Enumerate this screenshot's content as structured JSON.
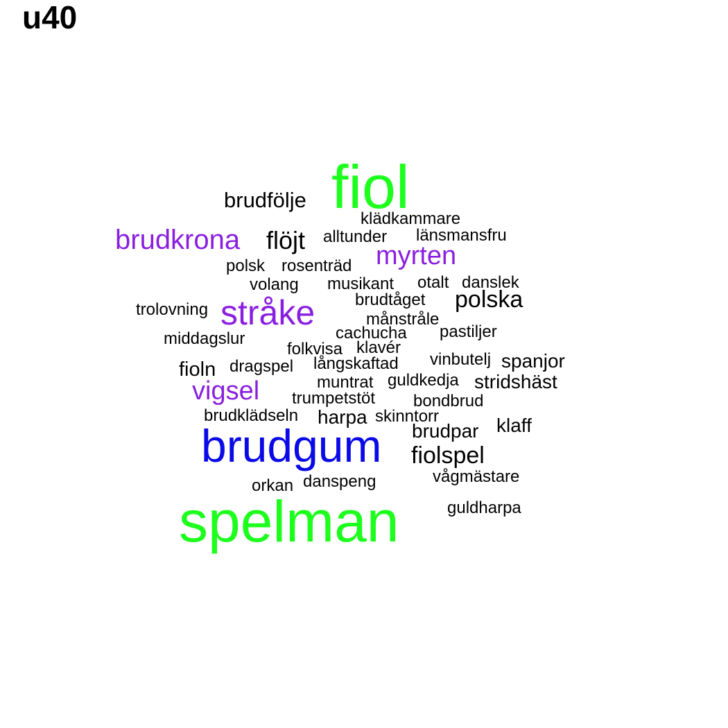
{
  "title": "u40",
  "colors": {
    "black": "#000000",
    "purple": "#8a1fe0",
    "green": "#1dff1d",
    "blue": "#0a0ae8"
  },
  "words": [
    {
      "text": "fiol",
      "color": "green"
    },
    {
      "text": "spelman",
      "color": "green"
    },
    {
      "text": "brudgum",
      "color": "blue"
    },
    {
      "text": "brudkrona",
      "color": "purple"
    },
    {
      "text": "stråke",
      "color": "purple"
    },
    {
      "text": "myrten",
      "color": "purple"
    },
    {
      "text": "vigsel",
      "color": "purple"
    },
    {
      "text": "brudfölje",
      "color": "black"
    },
    {
      "text": "klädkammare",
      "color": "black"
    },
    {
      "text": "flöjt",
      "color": "black"
    },
    {
      "text": "alltunder",
      "color": "black"
    },
    {
      "text": "länsmansfru",
      "color": "black"
    },
    {
      "text": "polsk",
      "color": "black"
    },
    {
      "text": "rosenträd",
      "color": "black"
    },
    {
      "text": "volang",
      "color": "black"
    },
    {
      "text": "musikant",
      "color": "black"
    },
    {
      "text": "otalt",
      "color": "black"
    },
    {
      "text": "danslek",
      "color": "black"
    },
    {
      "text": "trolovning",
      "color": "black"
    },
    {
      "text": "brudtåget",
      "color": "black"
    },
    {
      "text": "polska",
      "color": "black"
    },
    {
      "text": "månstråle",
      "color": "black"
    },
    {
      "text": "middagslur",
      "color": "black"
    },
    {
      "text": "cachucha",
      "color": "black"
    },
    {
      "text": "pastiljer",
      "color": "black"
    },
    {
      "text": "folkvisa",
      "color": "black"
    },
    {
      "text": "klavér",
      "color": "black"
    },
    {
      "text": "fioln",
      "color": "black"
    },
    {
      "text": "dragspel",
      "color": "black"
    },
    {
      "text": "långskaftad",
      "color": "black"
    },
    {
      "text": "vinbutelj",
      "color": "black"
    },
    {
      "text": "spanjor",
      "color": "black"
    },
    {
      "text": "muntrat",
      "color": "black"
    },
    {
      "text": "guldkedja",
      "color": "black"
    },
    {
      "text": "stridshäst",
      "color": "black"
    },
    {
      "text": "trumpetstöt",
      "color": "black"
    },
    {
      "text": "bondbrud",
      "color": "black"
    },
    {
      "text": "brudklädseln",
      "color": "black"
    },
    {
      "text": "harpa",
      "color": "black"
    },
    {
      "text": "skinntorr",
      "color": "black"
    },
    {
      "text": "brudpar",
      "color": "black"
    },
    {
      "text": "klaff",
      "color": "black"
    },
    {
      "text": "fiolspel",
      "color": "black"
    },
    {
      "text": "vågmästare",
      "color": "black"
    },
    {
      "text": "orkan",
      "color": "black"
    },
    {
      "text": "danspeng",
      "color": "black"
    },
    {
      "text": "guldharpa",
      "color": "black"
    }
  ]
}
